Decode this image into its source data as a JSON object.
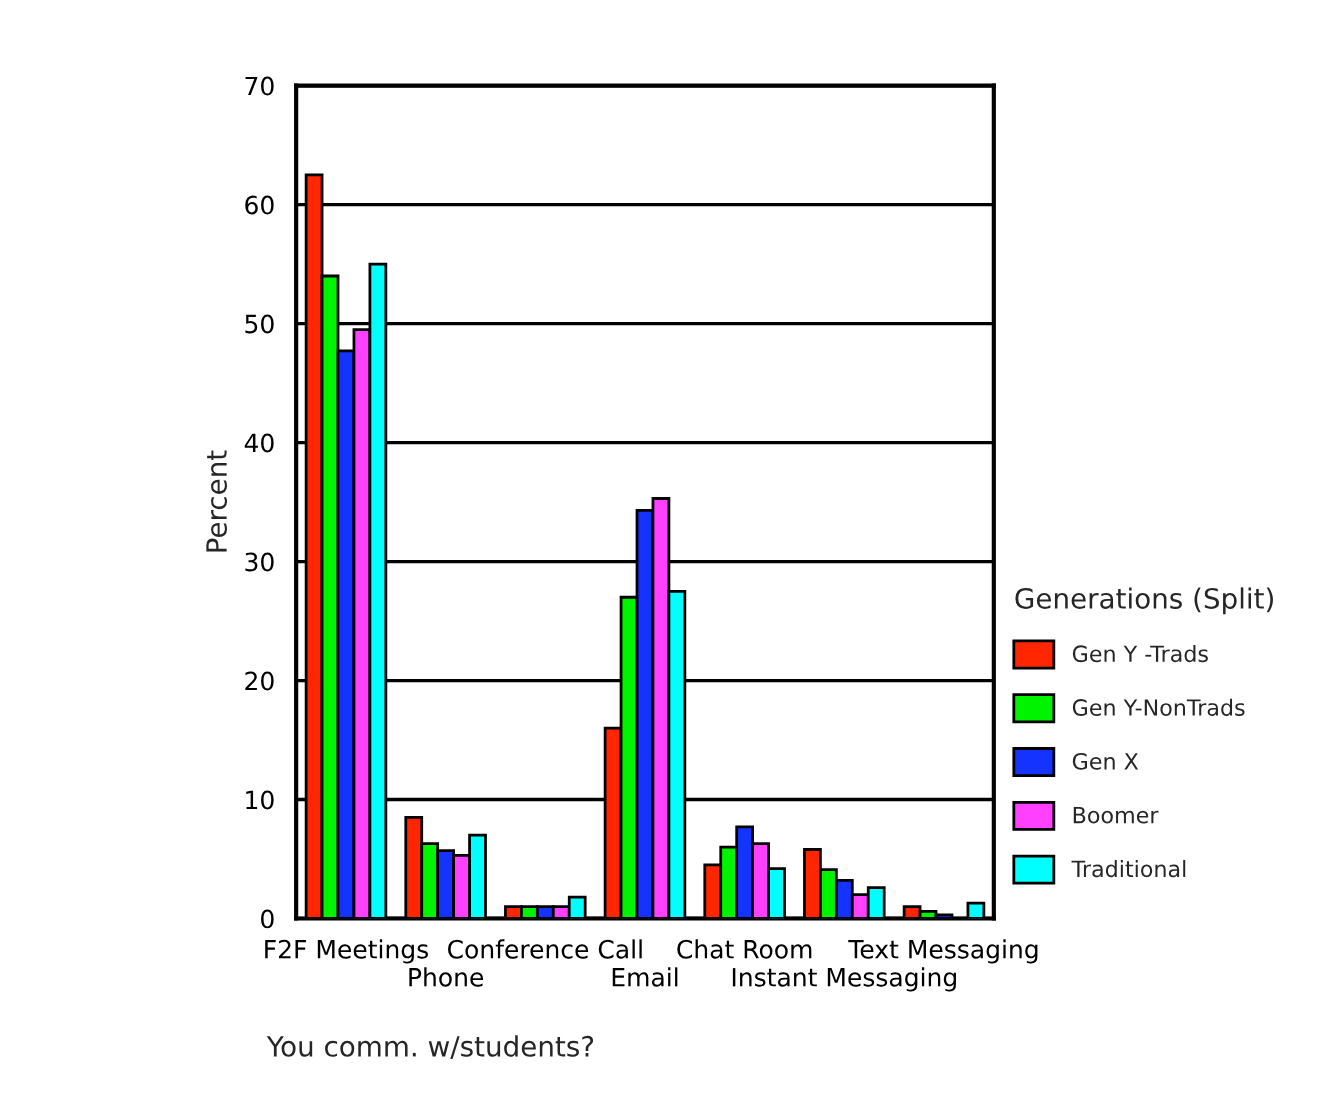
{
  "chart_data": {
    "type": "bar",
    "ylabel": "Percent",
    "legend_title": "Generations (Split)",
    "categories": [
      "F2F Meetings",
      "Phone",
      "Conference Call",
      "Email",
      "Chat Room",
      "Instant Messaging",
      "Text Messaging"
    ],
    "series": [
      {
        "name": "Gen Y -Trads",
        "color": "#ff2600",
        "values": [
          62.5,
          8.5,
          1,
          16,
          4.5,
          5.8,
          1
        ]
      },
      {
        "name": "Gen Y-NonTrads",
        "color": "#00f400",
        "values": [
          54,
          6.3,
          1,
          27,
          6,
          4.1,
          0.6
        ]
      },
      {
        "name": "Gen X",
        "color": "#1433ff",
        "values": [
          47.7,
          5.7,
          1,
          34.3,
          7.7,
          3.2,
          0.3
        ]
      },
      {
        "name": "Boomer",
        "color": "#ff40ff",
        "values": [
          49.5,
          5.3,
          1,
          35.3,
          6.3,
          2,
          null
        ]
      },
      {
        "name": "Traditional",
        "color": "#00ffff",
        "values": [
          55,
          7,
          1.8,
          27.5,
          4.2,
          2.6,
          1.3
        ]
      }
    ],
    "ylim": [
      0,
      70
    ],
    "yticks": [
      0,
      10,
      20,
      30,
      40,
      50,
      60,
      70
    ],
    "grid": "y",
    "legend": "right",
    "annotations": [
      "You comm. w/students?"
    ]
  }
}
